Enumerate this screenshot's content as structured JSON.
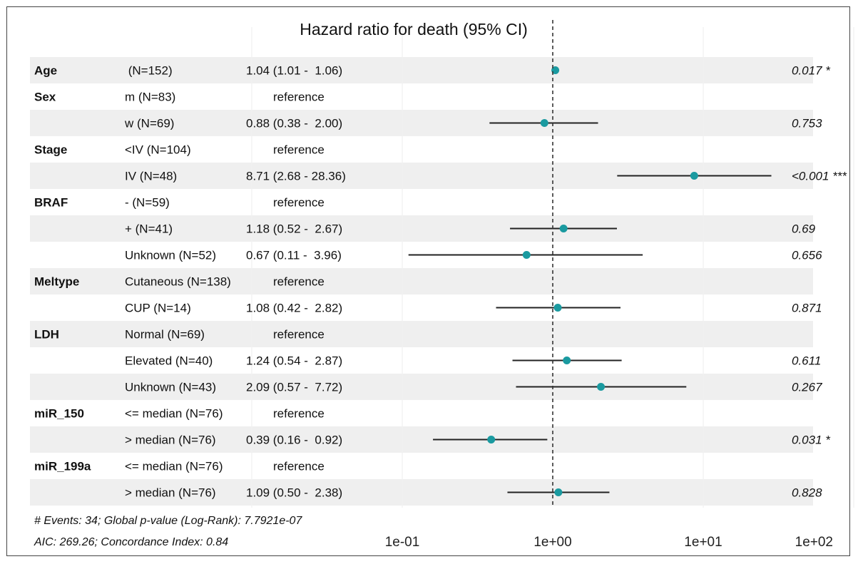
{
  "chart_data": {
    "type": "forest",
    "title": "Hazard ratio for death (95% CI)",
    "x_scale": "log10",
    "x_ticks": [
      "1e-01",
      "1e+00",
      "1e+01",
      "1e+02"
    ],
    "x_tick_values": [
      0.1,
      1,
      10,
      100
    ],
    "xlim": [
      0.01,
      100
    ],
    "reference_line": 1,
    "point_color": "#1a9aa0",
    "stripe_color": "#efefef",
    "rows": [
      {
        "variable": "Age",
        "level": " (N=152)",
        "estimate_text": "1.04 (1.01 -  1.06)",
        "hr": 1.04,
        "lower": 1.01,
        "upper": 1.06,
        "p": "0.017 *"
      },
      {
        "variable": "Sex",
        "level": "m (N=83)",
        "estimate_text": "reference",
        "hr": null,
        "lower": null,
        "upper": null,
        "p": ""
      },
      {
        "variable": "",
        "level": "w (N=69)",
        "estimate_text": "0.88 (0.38 -  2.00)",
        "hr": 0.88,
        "lower": 0.38,
        "upper": 2.0,
        "p": "0.753"
      },
      {
        "variable": "Stage",
        "level": "<IV (N=104)",
        "estimate_text": "reference",
        "hr": null,
        "lower": null,
        "upper": null,
        "p": ""
      },
      {
        "variable": "",
        "level": "IV (N=48)",
        "estimate_text": "8.71 (2.68 - 28.36)",
        "hr": 8.71,
        "lower": 2.68,
        "upper": 28.36,
        "p": "<0.001 ***"
      },
      {
        "variable": "BRAF",
        "level": "- (N=59)",
        "estimate_text": "reference",
        "hr": null,
        "lower": null,
        "upper": null,
        "p": ""
      },
      {
        "variable": "",
        "level": "+ (N=41)",
        "estimate_text": "1.18 (0.52 -  2.67)",
        "hr": 1.18,
        "lower": 0.52,
        "upper": 2.67,
        "p": "0.69"
      },
      {
        "variable": "",
        "level": "Unknown (N=52)",
        "estimate_text": "0.67 (0.11 -  3.96)",
        "hr": 0.67,
        "lower": 0.11,
        "upper": 3.96,
        "p": "0.656"
      },
      {
        "variable": "Meltype",
        "level": "Cutaneous (N=138)",
        "estimate_text": "reference",
        "hr": null,
        "lower": null,
        "upper": null,
        "p": ""
      },
      {
        "variable": "",
        "level": "CUP (N=14)",
        "estimate_text": "1.08 (0.42 -  2.82)",
        "hr": 1.08,
        "lower": 0.42,
        "upper": 2.82,
        "p": "0.871"
      },
      {
        "variable": "LDH",
        "level": "Normal (N=69)",
        "estimate_text": "reference",
        "hr": null,
        "lower": null,
        "upper": null,
        "p": ""
      },
      {
        "variable": "",
        "level": "Elevated (N=40)",
        "estimate_text": "1.24 (0.54 -  2.87)",
        "hr": 1.24,
        "lower": 0.54,
        "upper": 2.87,
        "p": "0.611"
      },
      {
        "variable": "",
        "level": "Unknown (N=43)",
        "estimate_text": "2.09 (0.57 -  7.72)",
        "hr": 2.09,
        "lower": 0.57,
        "upper": 7.72,
        "p": "0.267"
      },
      {
        "variable": "miR_150",
        "level": "<= median (N=76)",
        "estimate_text": "reference",
        "hr": null,
        "lower": null,
        "upper": null,
        "p": ""
      },
      {
        "variable": "",
        "level": "> median (N=76)",
        "estimate_text": "0.39 (0.16 -  0.92)",
        "hr": 0.39,
        "lower": 0.16,
        "upper": 0.92,
        "p": "0.031 *"
      },
      {
        "variable": "miR_199a",
        "level": "<= median (N=76)",
        "estimate_text": "reference",
        "hr": null,
        "lower": null,
        "upper": null,
        "p": ""
      },
      {
        "variable": "",
        "level": "> median (N=76)",
        "estimate_text": "1.09 (0.50 -  2.38)",
        "hr": 1.09,
        "lower": 0.5,
        "upper": 2.38,
        "p": "0.828"
      }
    ],
    "footnotes": [
      "# Events: 34; Global p-value (Log-Rank): 7.7921e-07",
      "AIC: 269.26; Concordance Index: 0.84"
    ]
  }
}
